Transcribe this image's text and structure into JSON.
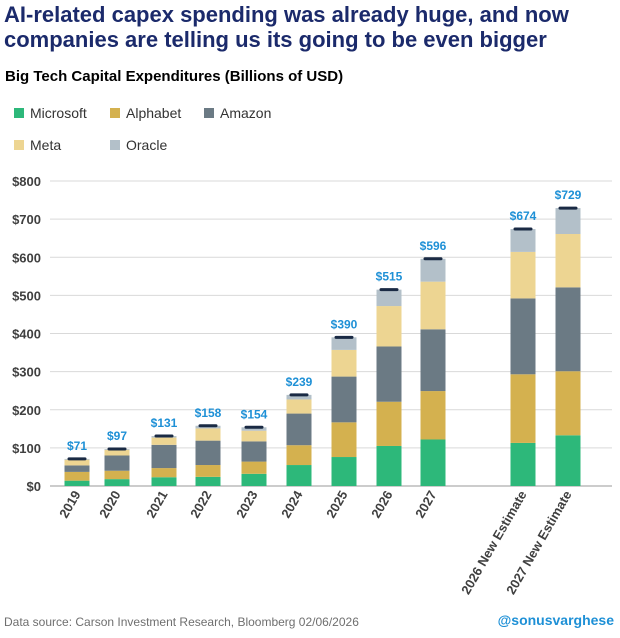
{
  "headline": {
    "line1": "AI-related capex spending was already huge, and now",
    "line2": "companies are telling us its going to be even bigger"
  },
  "footer": {
    "source": "Data source: Carson Investment Research, Bloomberg   02/06/2026",
    "handle": "@sonusvarghese"
  },
  "chart_data": {
    "type": "bar",
    "stacked": true,
    "title": "Big Tech Capital Expenditures (Billions of USD)",
    "xlabel": "",
    "ylabel": "",
    "ylim": [
      0,
      800
    ],
    "yticks": [
      "$0",
      "$100",
      "$200",
      "$300",
      "$400",
      "$500",
      "$600",
      "$700",
      "$800"
    ],
    "categories": [
      "2019",
      "2020",
      "2021",
      "2022",
      "2023",
      "2024",
      "2025",
      "2026",
      "2027",
      "2026 New Estimate",
      "2027 New Estimate"
    ],
    "totals_labels": [
      "$71",
      "$97",
      "$131",
      "$158",
      "$154",
      "$239",
      "$390",
      "$515",
      "$596",
      "$674",
      "$729"
    ],
    "totals": [
      71,
      97,
      131,
      158,
      154,
      239,
      390,
      515,
      596,
      674,
      729
    ],
    "series": [
      {
        "name": "Microsoft",
        "color": "#2db87a",
        "values": [
          14,
          18,
          23,
          24,
          32,
          55,
          76,
          105,
          122,
          113,
          133
        ]
      },
      {
        "name": "Alphabet",
        "color": "#d4b14f",
        "values": [
          23,
          22,
          24,
          31,
          32,
          52,
          91,
          116,
          127,
          180,
          168
        ]
      },
      {
        "name": "Amazon",
        "color": "#6b7a84",
        "values": [
          17,
          40,
          61,
          64,
          53,
          83,
          120,
          145,
          162,
          199,
          220
        ]
      },
      {
        "name": "Meta",
        "color": "#edd592",
        "values": [
          15,
          15,
          19,
          32,
          28,
          37,
          70,
          106,
          125,
          122,
          140
        ]
      },
      {
        "name": "Oracle",
        "color": "#b3c0c9",
        "values": [
          2,
          2,
          4,
          7,
          9,
          12,
          33,
          43,
          60,
          60,
          68
        ]
      }
    ],
    "legend_position": "top-left",
    "grid": true
  }
}
